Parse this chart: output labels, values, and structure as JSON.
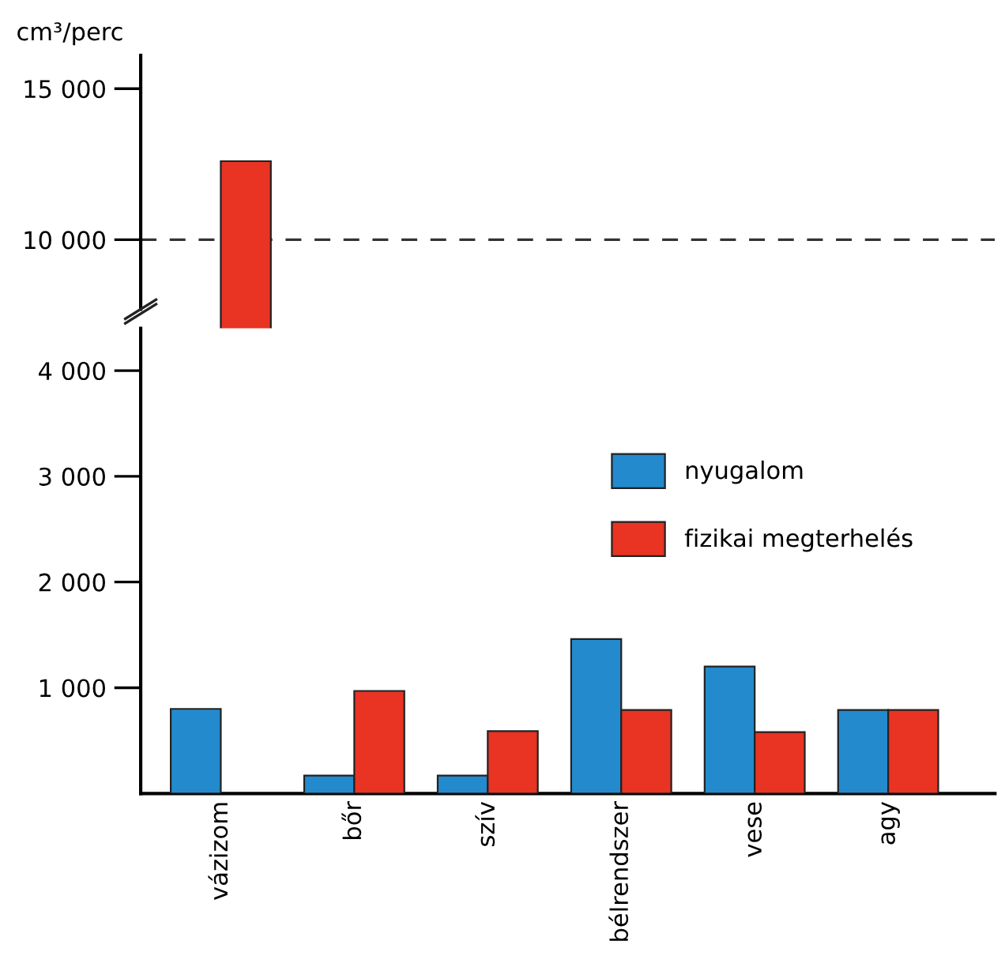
{
  "chart_data": [
    {
      "type": "bar",
      "ylabel": "cm³/perc",
      "categories": [
        null,
        null,
        null,
        null,
        null,
        null
      ],
      "series": [
        {
          "color": "#238acd",
          "values": [
            null,
            null,
            null,
            null,
            null,
            null
          ]
        },
        {
          "color": "#e93323",
          "values": [
            12600,
            null,
            null,
            null,
            null,
            null
          ]
        }
      ],
      "ylim": [
        7700,
        16100
      ],
      "yticks": [
        {
          "value": 10000,
          "label": "10 000"
        },
        {
          "value": 15000,
          "label": "15 000"
        }
      ],
      "ref_lines": [
        {
          "axis": "y",
          "value": 10000,
          "color": "#333333",
          "line_style": "dashed"
        }
      ],
      "tick_labels": "y",
      "grid": false
    },
    {
      "type": "bar",
      "categories": [
        "vázizom",
        "bőr",
        "szív",
        "bélrendszer",
        "vese",
        "agy"
      ],
      "series": [
        {
          "name": "nyugalom",
          "color": "#238acd",
          "values": [
            800,
            170,
            170,
            1460,
            1200,
            790
          ]
        },
        {
          "name": "fizikai megterhelés",
          "color": "#e93323",
          "values": [
            null,
            970,
            590,
            790,
            580,
            790
          ]
        }
      ],
      "ylim": [
        0,
        4400
      ],
      "yticks": [
        {
          "value": 1000,
          "label": "1 000"
        },
        {
          "value": 2000,
          "label": "2 000"
        },
        {
          "value": 3000,
          "label": "3 000"
        },
        {
          "value": 4000,
          "label": "4 000"
        }
      ],
      "legend": "right",
      "grid": false
    }
  ]
}
